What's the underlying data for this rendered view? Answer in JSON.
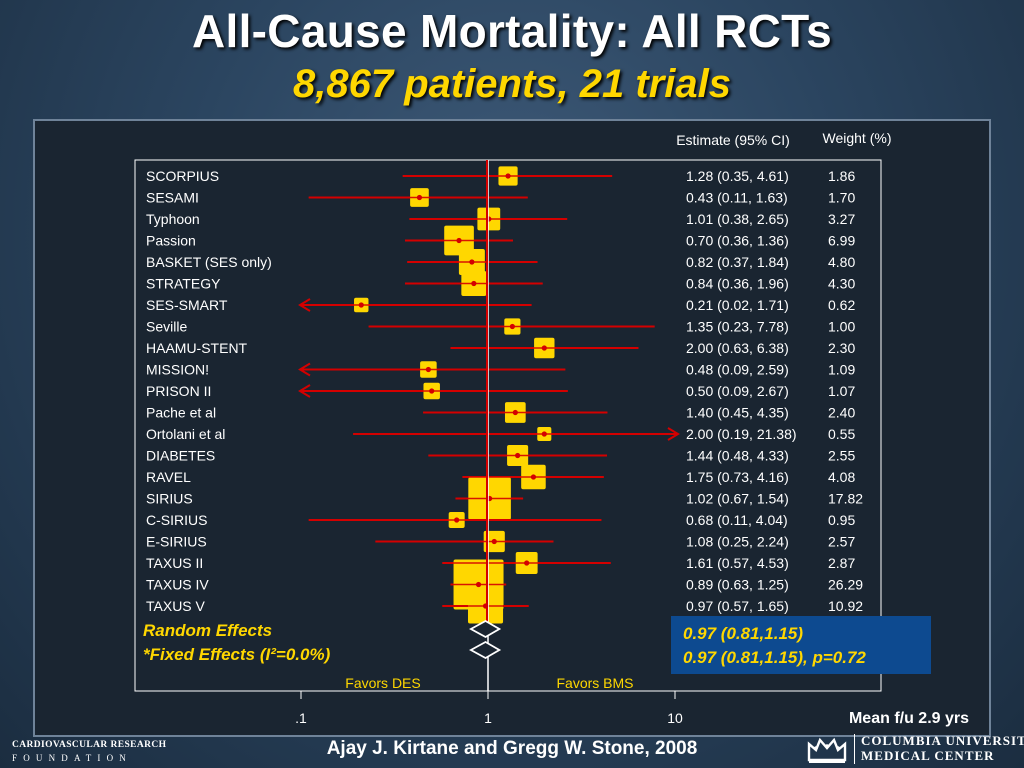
{
  "header": {
    "title": "All-Cause Mortality: All RCTs",
    "subtitle": "8,867 patients, 21 trials"
  },
  "columns": {
    "estimate": "Estimate (95% CI)",
    "weight": "Weight (%)"
  },
  "pooled": {
    "random_label": "Random Effects",
    "fixed_label": "*Fixed Effects (I²=0.0%)",
    "random_value": "0.97 (0.81,1.15)",
    "fixed_value": "0.97 (0.81,1.15), p=0.72"
  },
  "favors": {
    "left": "Favors DES",
    "right": "Favors BMS"
  },
  "followup": "Mean f/u 2.9 yrs",
  "footer": {
    "author": "Ajay J. Kirtane and Gregg W. Stone, 2008",
    "crf_line1": "CARDIOVASCULAR RESEARCH",
    "crf_line2": "FOUNDATION",
    "columbia_line1": "COLUMBIA UNIVERSITY",
    "columbia_line2": "MEDICAL CENTER"
  },
  "colors": {
    "box": "#ffd700",
    "ci_line": "#d40000",
    "estimate_text": "#ffd700",
    "pooled_box": "#0d4a90"
  },
  "chart_data": {
    "type": "forest",
    "x_scale": "log",
    "x_ticks": [
      0.1,
      1,
      10
    ],
    "x_tick_labels": [
      ".1",
      "1",
      "10"
    ],
    "null_value": 1,
    "rows": [
      {
        "study": "SCORPIUS",
        "est": 1.28,
        "lo": 0.35,
        "hi": 4.61,
        "estimate": "1.28 (0.35, 4.61)",
        "weight": "1.86"
      },
      {
        "study": "SESAMI",
        "est": 0.43,
        "lo": 0.11,
        "hi": 1.63,
        "estimate": "0.43 (0.11, 1.63)",
        "weight": "1.70"
      },
      {
        "study": "Typhoon",
        "est": 1.01,
        "lo": 0.38,
        "hi": 2.65,
        "estimate": "1.01 (0.38, 2.65)",
        "weight": "3.27"
      },
      {
        "study": "Passion",
        "est": 0.7,
        "lo": 0.36,
        "hi": 1.36,
        "estimate": "0.70 (0.36, 1.36)",
        "weight": "6.99"
      },
      {
        "study": "BASKET (SES only)",
        "est": 0.82,
        "lo": 0.37,
        "hi": 1.84,
        "estimate": "0.82 (0.37, 1.84)",
        "weight": "4.80"
      },
      {
        "study": "STRATEGY",
        "est": 0.84,
        "lo": 0.36,
        "hi": 1.96,
        "estimate": "0.84 (0.36, 1.96)",
        "weight": "4.30"
      },
      {
        "study": "SES-SMART",
        "est": 0.21,
        "lo": 0.02,
        "hi": 1.71,
        "estimate": "0.21 (0.02, 1.71)",
        "weight": "0.62"
      },
      {
        "study": "Seville",
        "est": 1.35,
        "lo": 0.23,
        "hi": 7.78,
        "estimate": "1.35 (0.23, 7.78)",
        "weight": "1.00"
      },
      {
        "study": "HAAMU-STENT",
        "est": 2.0,
        "lo": 0.63,
        "hi": 6.38,
        "estimate": "2.00 (0.63, 6.38)",
        "weight": "2.30"
      },
      {
        "study": "MISSION!",
        "est": 0.48,
        "lo": 0.09,
        "hi": 2.59,
        "estimate": "0.48 (0.09, 2.59)",
        "weight": "1.09"
      },
      {
        "study": "PRISON II",
        "est": 0.5,
        "lo": 0.09,
        "hi": 2.67,
        "estimate": "0.50 (0.09, 2.67)",
        "weight": "1.07"
      },
      {
        "study": "Pache et al",
        "est": 1.4,
        "lo": 0.45,
        "hi": 4.35,
        "estimate": "1.40 (0.45, 4.35)",
        "weight": "2.40"
      },
      {
        "study": "Ortolani et al",
        "est": 2.0,
        "lo": 0.19,
        "hi": 21.38,
        "estimate": "2.00 (0.19, 21.38)",
        "weight": "0.55"
      },
      {
        "study": "DIABETES",
        "est": 1.44,
        "lo": 0.48,
        "hi": 4.33,
        "estimate": "1.44 (0.48, 4.33)",
        "weight": "2.55"
      },
      {
        "study": "RAVEL",
        "est": 1.75,
        "lo": 0.73,
        "hi": 4.16,
        "estimate": "1.75 (0.73, 4.16)",
        "weight": "4.08"
      },
      {
        "study": "SIRIUS",
        "est": 1.02,
        "lo": 0.67,
        "hi": 1.54,
        "estimate": "1.02 (0.67, 1.54)",
        "weight": "17.82"
      },
      {
        "study": "C-SIRIUS",
        "est": 0.68,
        "lo": 0.11,
        "hi": 4.04,
        "estimate": "0.68 (0.11, 4.04)",
        "weight": "0.95"
      },
      {
        "study": "E-SIRIUS",
        "est": 1.08,
        "lo": 0.25,
        "hi": 2.24,
        "estimate": "1.08 (0.25, 2.24)",
        "weight": "2.57"
      },
      {
        "study": "TAXUS II",
        "est": 1.61,
        "lo": 0.57,
        "hi": 4.53,
        "estimate": "1.61 (0.57, 4.53)",
        "weight": "2.87"
      },
      {
        "study": "TAXUS IV",
        "est": 0.89,
        "lo": 0.63,
        "hi": 1.25,
        "estimate": "0.89 (0.63, 1.25)",
        "weight": "26.29"
      },
      {
        "study": "TAXUS V",
        "est": 0.97,
        "lo": 0.57,
        "hi": 1.65,
        "estimate": "0.97 (0.57, 1.65)",
        "weight": "10.92"
      }
    ],
    "pooled": [
      {
        "name": "Random Effects",
        "est": 0.97,
        "lo": 0.81,
        "hi": 1.15
      },
      {
        "name": "*Fixed Effects (I²=0.0%)",
        "est": 0.97,
        "lo": 0.81,
        "hi": 1.15
      }
    ]
  }
}
